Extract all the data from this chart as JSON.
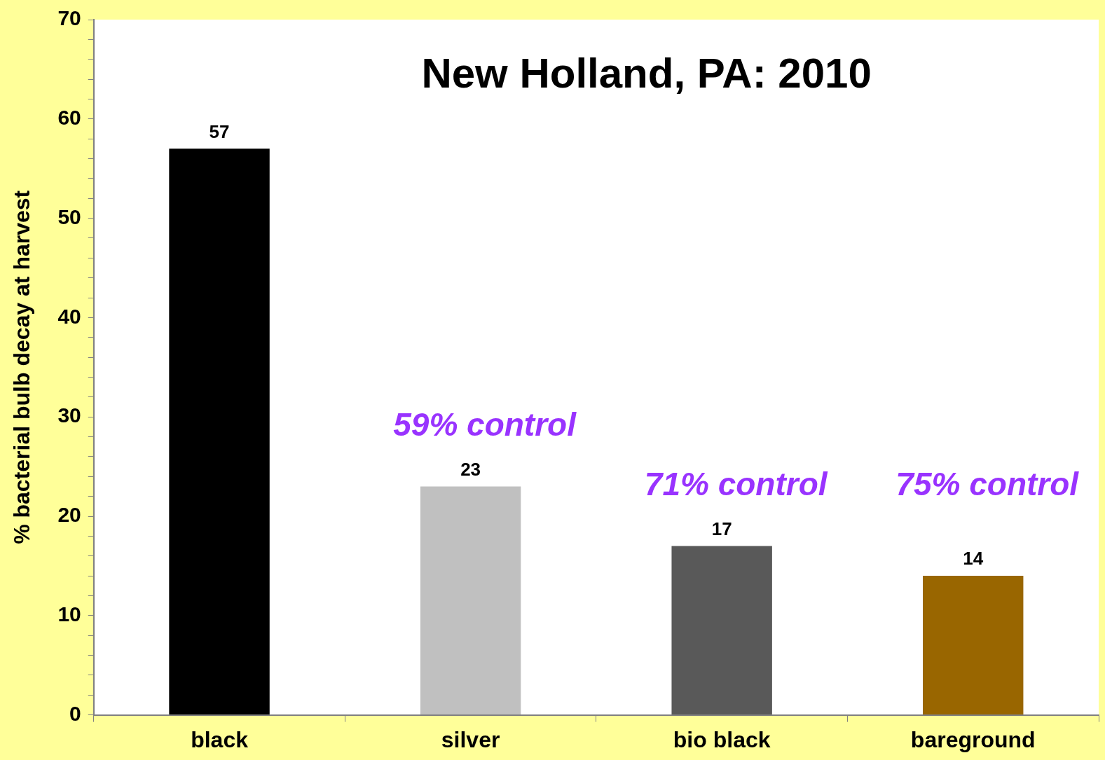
{
  "chart_data": {
    "type": "bar",
    "title": "New Holland, PA: 2010",
    "ylabel": "% bacterial bulb decay at harvest",
    "categories": [
      "black",
      "silver",
      "bio black",
      "bareground"
    ],
    "values": [
      57,
      23,
      17,
      14
    ],
    "colors": [
      "#000000",
      "#c0c0c0",
      "#595959",
      "#996600"
    ],
    "ylim": [
      0,
      70
    ],
    "yticks": [
      0,
      {
        "value": 2,
        "label": null
      },
      {
        "value": 4,
        "label": null
      },
      {
        "value": 6,
        "label": null
      },
      {
        "value": 8,
        "label": null
      },
      10,
      {
        "value": 12,
        "label": null
      },
      {
        "value": 14,
        "label": null
      },
      {
        "value": 16,
        "label": null
      },
      {
        "value": 18,
        "label": null
      },
      20,
      {
        "value": 22,
        "label": null
      },
      {
        "value": 24,
        "label": null
      },
      {
        "value": 26,
        "label": null
      },
      {
        "value": 28,
        "label": null
      },
      30,
      {
        "value": 32,
        "label": null
      },
      {
        "value": 34,
        "label": null
      },
      {
        "value": 36,
        "label": null
      },
      {
        "value": 38,
        "label": null
      },
      40,
      {
        "value": 42,
        "label": null
      },
      {
        "value": 44,
        "label": null
      },
      {
        "value": 46,
        "label": null
      },
      {
        "value": 48,
        "label": null
      },
      50,
      {
        "value": 52,
        "label": null
      },
      {
        "value": 54,
        "label": null
      },
      {
        "value": 56,
        "label": null
      },
      {
        "value": 58,
        "label": null
      },
      60,
      {
        "value": 62,
        "label": null
      },
      {
        "value": 64,
        "label": null
      },
      {
        "value": 66,
        "label": null
      },
      {
        "value": 68,
        "label": null
      },
      70
    ],
    "data_labels": true,
    "annotations": [
      "59% control",
      "71% control",
      "75% control"
    ]
  }
}
